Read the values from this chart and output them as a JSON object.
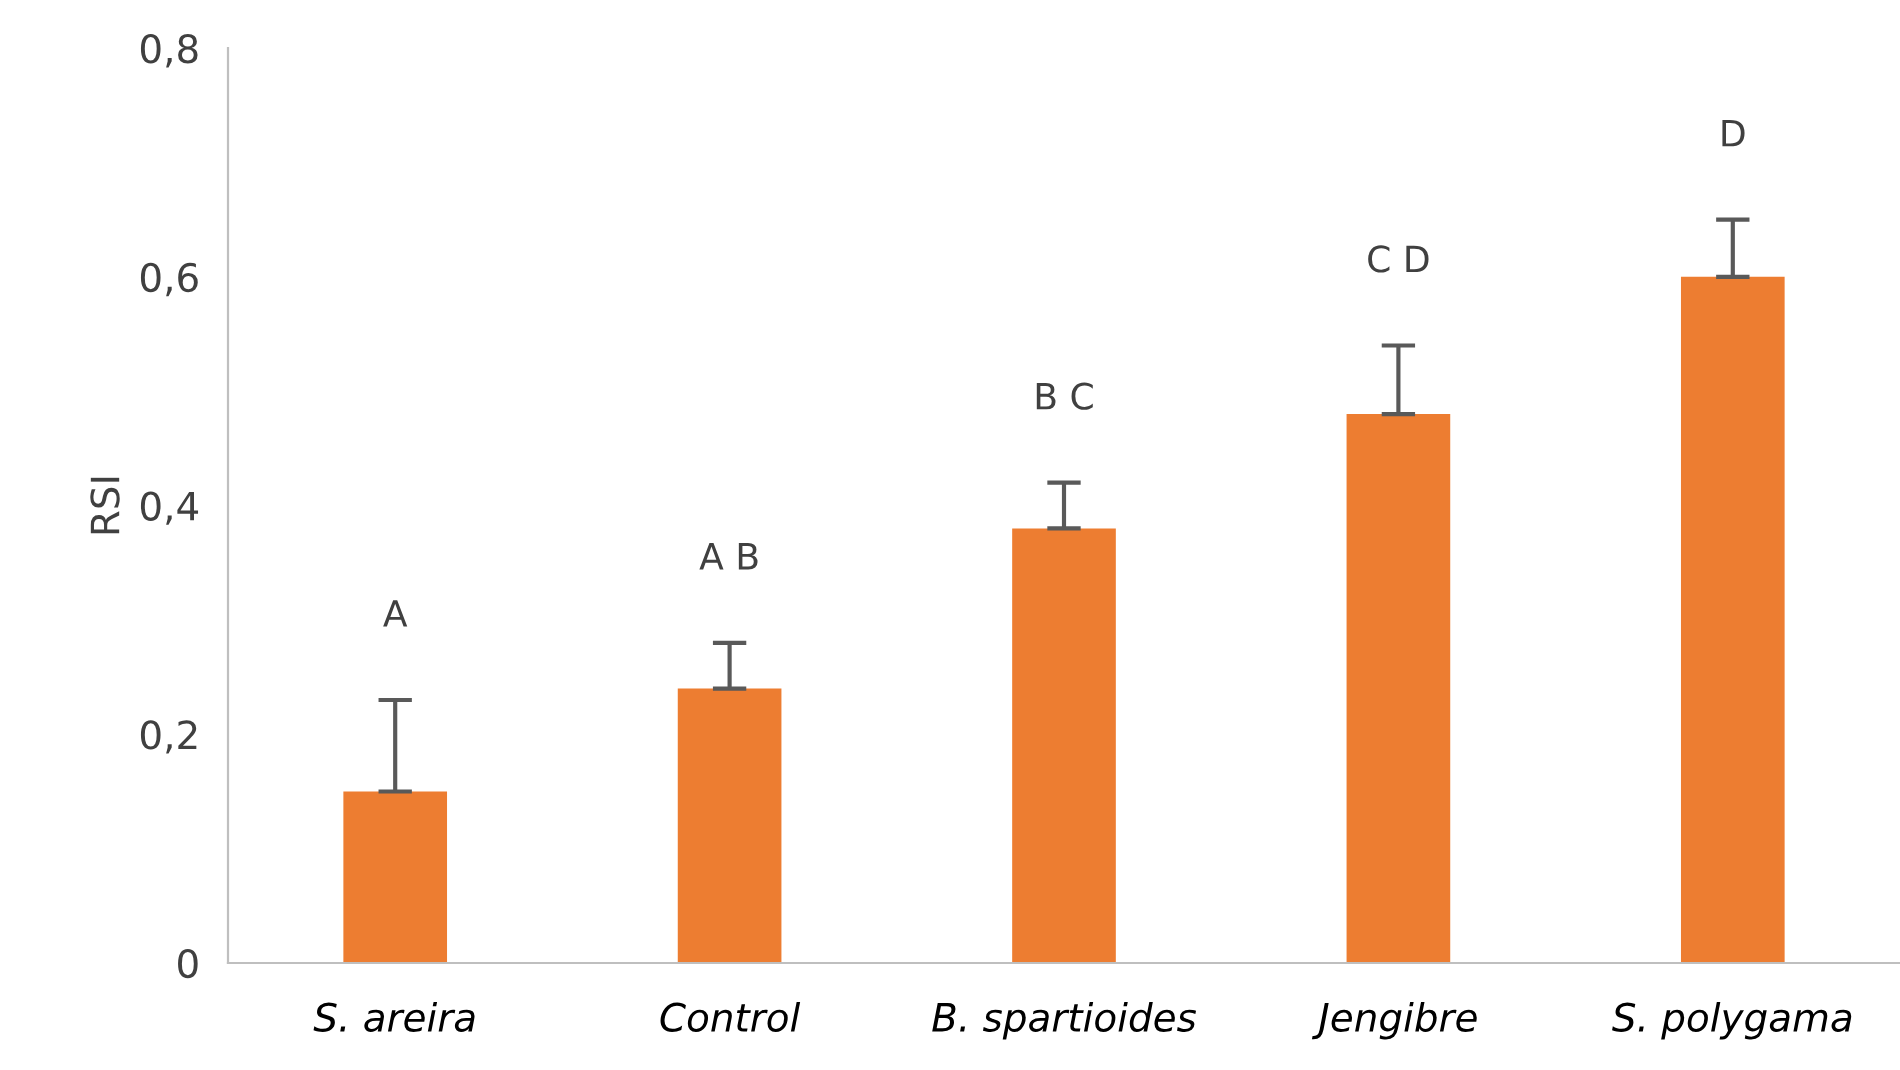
{
  "chart_data": {
    "type": "bar",
    "ylabel": "RSI",
    "categories": [
      "S. areira",
      "Control",
      "B. spartioides",
      "Jengibre",
      "S. polygama"
    ],
    "series": [
      {
        "color": "#ed7d31",
        "values": [
          0.15,
          0.24,
          0.38,
          0.48,
          0.6
        ],
        "errors": [
          [
            0.15,
            0.23
          ],
          [
            0.24,
            0.28
          ],
          [
            0.38,
            0.42
          ],
          [
            0.48,
            0.54
          ],
          [
            0.6,
            0.65
          ]
        ]
      }
    ],
    "ylim": [
      0,
      0.8
    ],
    "yticks": [
      0,
      {
        "value": 0.2,
        "label": "0,2"
      },
      {
        "value": 0.4,
        "label": "0,4"
      },
      {
        "value": 0.6,
        "label": "0,6"
      },
      {
        "value": 0.8,
        "label": "0,8"
      }
    ],
    "annotations": [
      "A",
      "A B",
      "B C",
      "C D",
      "D"
    ],
    "grid": false,
    "legend": false
  }
}
